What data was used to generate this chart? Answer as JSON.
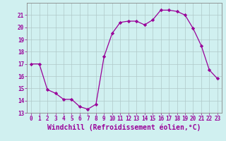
{
  "x": [
    0,
    1,
    2,
    3,
    4,
    5,
    6,
    7,
    8,
    9,
    10,
    11,
    12,
    13,
    14,
    15,
    16,
    17,
    18,
    19,
    20,
    21,
    22,
    23
  ],
  "y": [
    17.0,
    17.0,
    14.9,
    14.6,
    14.1,
    14.1,
    13.5,
    13.3,
    13.7,
    17.6,
    19.5,
    20.4,
    20.5,
    20.5,
    20.2,
    20.6,
    21.4,
    21.4,
    21.3,
    21.0,
    19.9,
    18.5,
    16.5,
    15.8
  ],
  "line_color": "#990099",
  "marker": "D",
  "marker_size": 2.2,
  "bg_color": "#d0f0f0",
  "grid_color": "#b0c8c8",
  "xlabel": "Windchill (Refroidissement éolien,°C)",
  "ylim": [
    13,
    22
  ],
  "xlim": [
    -0.5,
    23.5
  ],
  "yticks": [
    13,
    14,
    15,
    16,
    17,
    18,
    19,
    20,
    21
  ],
  "xticks": [
    0,
    1,
    2,
    3,
    4,
    5,
    6,
    7,
    8,
    9,
    10,
    11,
    12,
    13,
    14,
    15,
    16,
    17,
    18,
    19,
    20,
    21,
    22,
    23
  ],
  "tick_label_color": "#990099",
  "label_color": "#990099",
  "tick_fontsize": 5.5,
  "xlabel_fontsize": 7.0
}
